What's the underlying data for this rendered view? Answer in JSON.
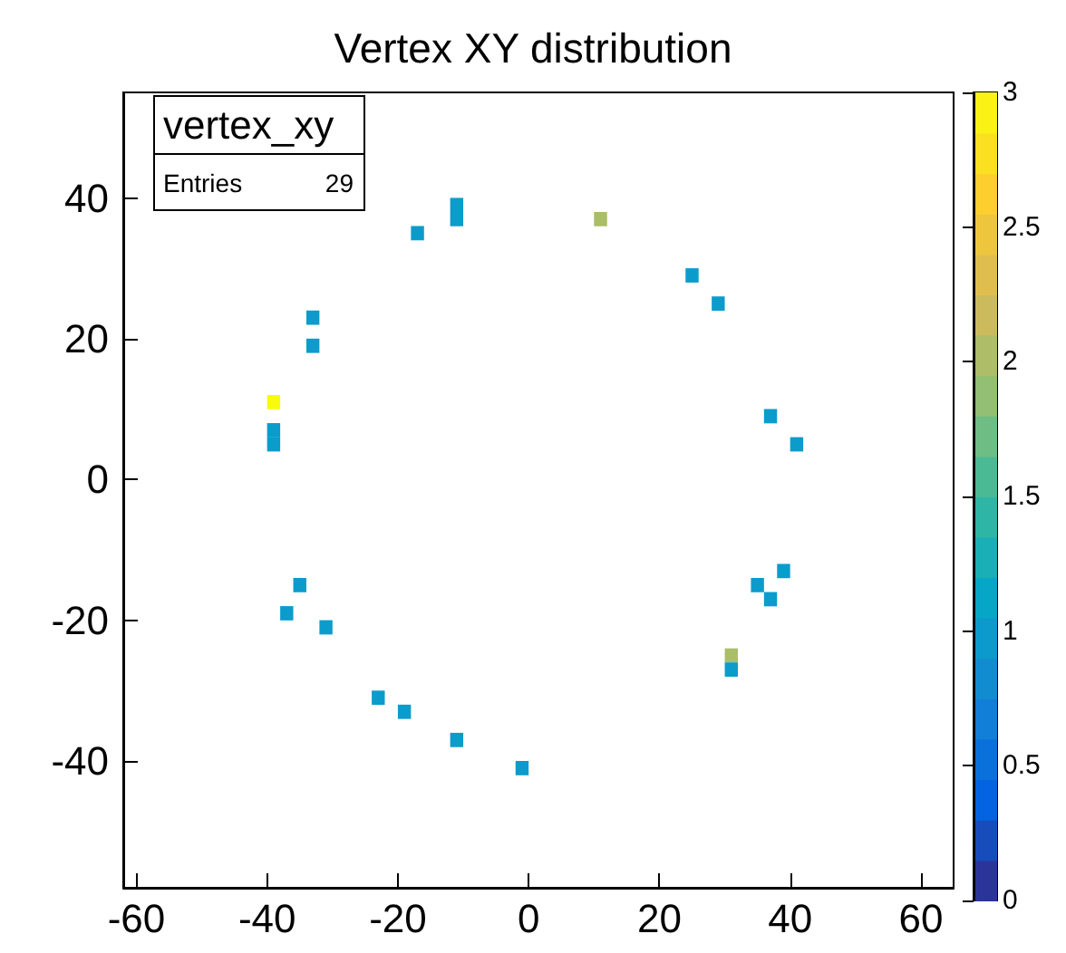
{
  "chart_data": {
    "type": "scatter",
    "title": "Vertex XY distribution",
    "marker": "square",
    "grid": false,
    "annotations": [
      "vertex_xy",
      "Entries",
      "29"
    ],
    "xlim": [
      -62,
      65
    ],
    "xticks": [
      -60,
      -40,
      -20,
      0,
      20,
      40,
      60
    ],
    "ylim": [
      -58,
      55
    ],
    "yticks": [
      -40,
      -20,
      0,
      20,
      40
    ],
    "clim": [
      0,
      3
    ],
    "cticks": [
      0,
      0.5,
      1,
      1.5,
      2,
      2.5,
      3
    ],
    "x": [
      -39,
      -39,
      -39,
      -33,
      -33,
      -17,
      -11,
      -11,
      11,
      25,
      29,
      37,
      41,
      -35,
      -37,
      -31,
      -23,
      -19,
      -11,
      -1,
      31,
      31,
      35,
      37,
      39
    ],
    "values": [
      11,
      7,
      5,
      23,
      19,
      35,
      39,
      37,
      37,
      29,
      25,
      9,
      5,
      -15,
      -19,
      -21,
      -31,
      -33,
      -37,
      -41,
      -25,
      -27,
      -15,
      -17,
      -13
    ],
    "cvalues": [
      3,
      1,
      1,
      1,
      1,
      1,
      1,
      1,
      2,
      1,
      1,
      1,
      1,
      1,
      1,
      1,
      1,
      1,
      1,
      1,
      2,
      1,
      1,
      1,
      1
    ]
  }
}
